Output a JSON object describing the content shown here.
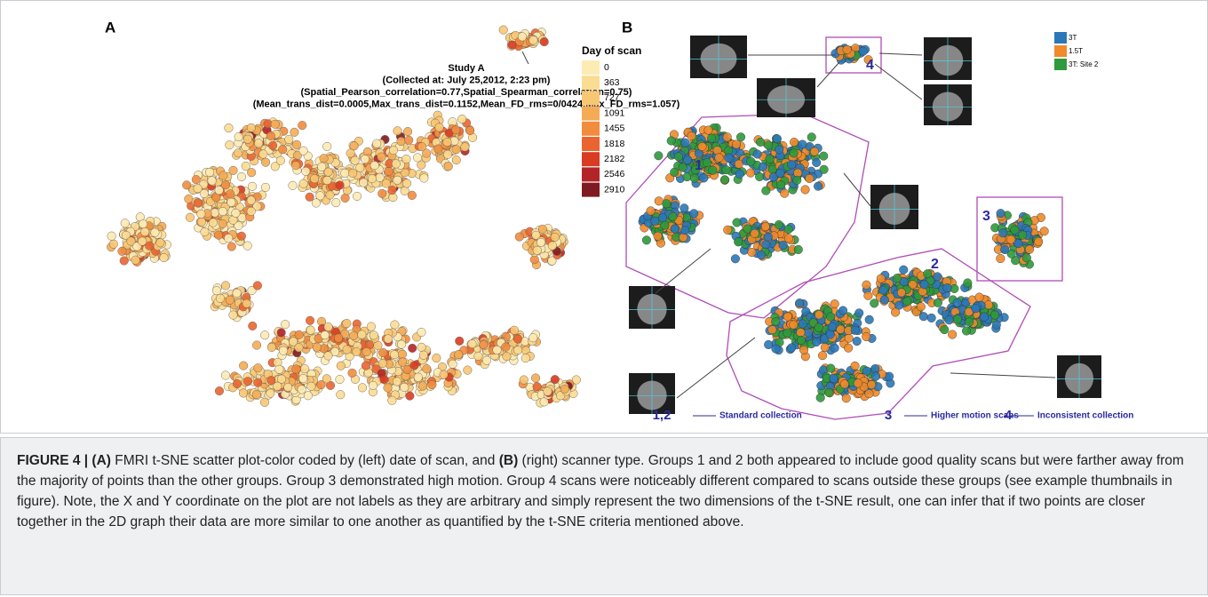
{
  "panel_a": {
    "label": "A",
    "annotation": [
      "Study A",
      "(Collected at: July 25,2012, 2:23 pm)",
      "(Spatial_Pearson_correlation=0.77,Spatial_Spearman_correlation=0.75)",
      "(Mean_trans_dist=0.0005,Max_trans_dist=0.1152,Mean_FD_rms=0/0424,Max_FD_rms=1.057)"
    ],
    "legend_title": "Day of scan",
    "legend": [
      {
        "label": "0",
        "color": "#fdebb4"
      },
      {
        "label": "363",
        "color": "#fbdc93"
      },
      {
        "label": "727",
        "color": "#f8c774"
      },
      {
        "label": "1091",
        "color": "#f5ab56"
      },
      {
        "label": "1455",
        "color": "#f18c3f"
      },
      {
        "label": "1818",
        "color": "#ea6430"
      },
      {
        "label": "2182",
        "color": "#d83c23"
      },
      {
        "label": "2546",
        "color": "#b32428"
      },
      {
        "label": "2910",
        "color": "#7f1b20"
      }
    ]
  },
  "panel_b": {
    "label": "B",
    "legend": [
      {
        "label": "3T",
        "color": "#2b78b8"
      },
      {
        "label": "1.5T",
        "color": "#f08a2a"
      },
      {
        "label": "3T: Site 2",
        "color": "#2e9a3c"
      }
    ],
    "groups": [
      "1",
      "2",
      "3",
      "4"
    ],
    "key": [
      {
        "number": "1,2",
        "text": "Standard collection"
      },
      {
        "number": "3",
        "text": "Higher motion scans"
      },
      {
        "number": "4",
        "text": "Inconsistent collection"
      }
    ]
  },
  "caption": [
    {
      "text": "FIGURE 4 | (A)",
      "bold": true
    },
    {
      "text": " FMRI t-SNE scatter plot-color coded by (left) date of scan, and ",
      "bold": false
    },
    {
      "text": "(B)",
      "bold": true
    },
    {
      "text": " (right) scanner type. Groups 1 and 2 both appeared to include good quality scans but were farther away from the majority of points than the other groups. Group 3 demonstrated high motion. Group 4 scans were noticeably different compared to scans outside these groups (see example thumbnails in figure). Note, the X and Y coordinate on the plot are not labels as they are arbitrary and simply represent the two dimensions of the t-SNE result, one can infer that if two points are closer together in the 2D graph their data are more similar to one another as quantified by the t-SNE criteria mentioned above.",
      "bold": false
    }
  ]
}
